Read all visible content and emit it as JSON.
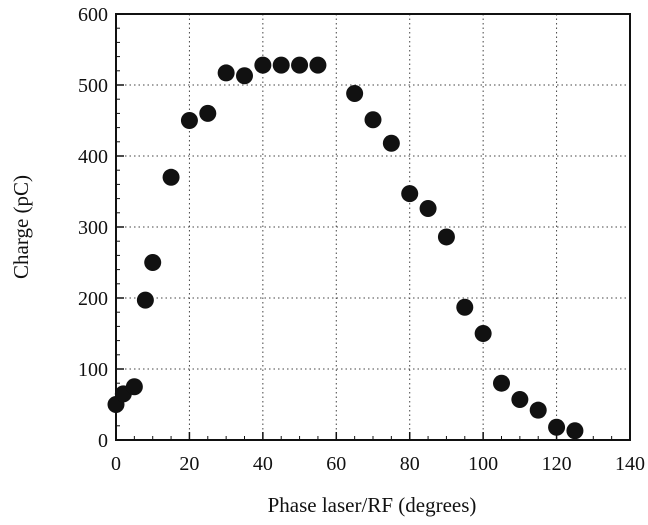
{
  "chart_data": {
    "type": "scatter",
    "xlabel": "Phase laser/RF (degrees)",
    "ylabel": "Charge (pC)",
    "xlim": [
      0,
      140
    ],
    "ylim": [
      0,
      600
    ],
    "x_ticks": [
      0,
      20,
      40,
      60,
      80,
      100,
      120,
      140
    ],
    "y_ticks": [
      0,
      100,
      200,
      300,
      400,
      500,
      600
    ],
    "x_tick_labels": [
      "0",
      "20",
      "40",
      "60",
      "80",
      "100",
      "120",
      "140"
    ],
    "y_tick_labels": [
      "0",
      "100",
      "200",
      "300",
      "400",
      "500",
      "600"
    ],
    "grid": "dotted",
    "marker_color": "#111111",
    "series": [
      {
        "points": [
          [
            0,
            50
          ],
          [
            2,
            65
          ],
          [
            5,
            75
          ],
          [
            8,
            197
          ],
          [
            10,
            250
          ],
          [
            15,
            370
          ],
          [
            20,
            450
          ],
          [
            25,
            460
          ],
          [
            30,
            517
          ],
          [
            35,
            513
          ],
          [
            40,
            528
          ],
          [
            45,
            528
          ],
          [
            50,
            528
          ],
          [
            55,
            528
          ],
          [
            65,
            488
          ],
          [
            70,
            451
          ],
          [
            75,
            418
          ],
          [
            80,
            347
          ],
          [
            85,
            326
          ],
          [
            90,
            286
          ],
          [
            95,
            187
          ],
          [
            100,
            150
          ],
          [
            105,
            80
          ],
          [
            110,
            57
          ],
          [
            115,
            42
          ],
          [
            120,
            18
          ],
          [
            125,
            13
          ]
        ]
      }
    ]
  }
}
